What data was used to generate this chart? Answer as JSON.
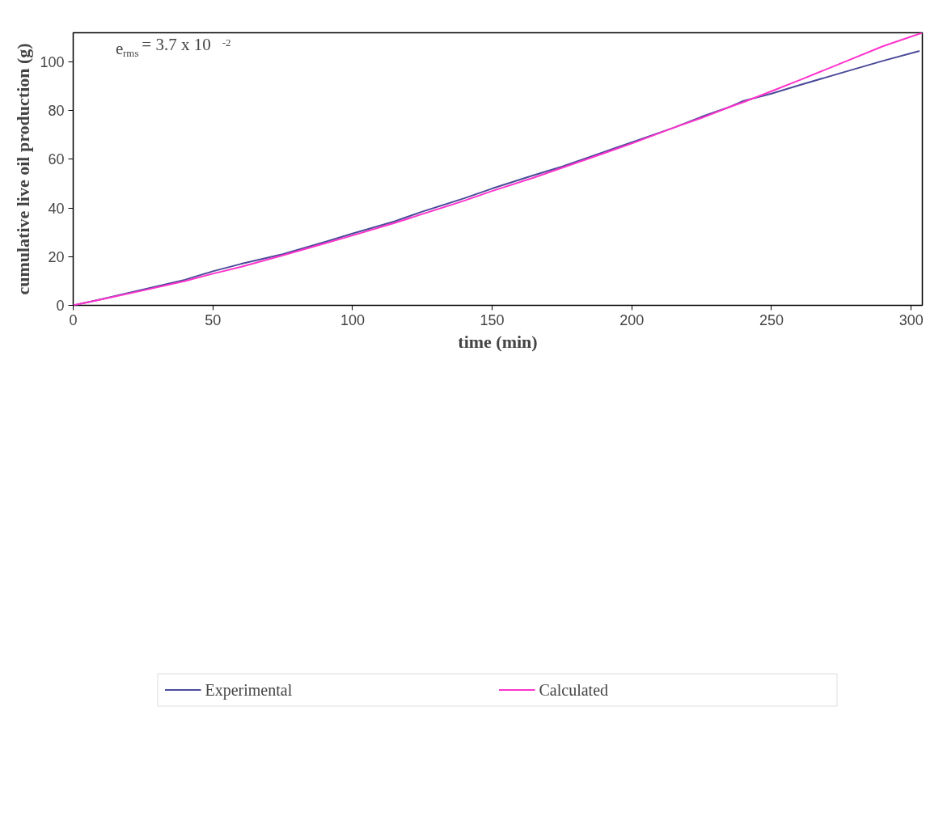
{
  "chart_data": {
    "type": "line",
    "xlabel": "time (min)",
    "ylabel": "cumulative live oil production (g)",
    "xlim": [
      0,
      304
    ],
    "ylim": [
      0,
      112
    ],
    "xticks": [
      0,
      50,
      100,
      150,
      200,
      250,
      300
    ],
    "yticks": [
      0,
      20,
      40,
      60,
      80,
      100
    ],
    "grid": false,
    "legend": "bottom",
    "marker": "none",
    "line_style": "solid",
    "annotations": [
      "e$_{rms}$ = 3.7 x 10$^{-2}$"
    ],
    "series": [
      {
        "name": "Experimental",
        "color": "#4a4a9a",
        "x": [
          0,
          10,
          25,
          40,
          50,
          60,
          75,
          90,
          100,
          115,
          125,
          140,
          150,
          165,
          175,
          190,
          200,
          215,
          225,
          235,
          240,
          250,
          260,
          275,
          290,
          303
        ],
        "values": [
          0,
          2.5,
          6.5,
          10.5,
          14,
          17,
          21,
          26,
          29.5,
          34.5,
          38.5,
          44,
          48,
          53.5,
          57,
          63,
          67,
          73,
          77.5,
          81.5,
          84,
          87,
          90.5,
          95.5,
          100.5,
          104.5
        ]
      },
      {
        "name": "Calculated",
        "color": "#ff33cc",
        "x": [
          0,
          10,
          25,
          40,
          50,
          60,
          75,
          90,
          100,
          115,
          125,
          140,
          150,
          165,
          175,
          190,
          200,
          215,
          225,
          235,
          240,
          250,
          260,
          275,
          290,
          304
        ],
        "values": [
          0,
          2.4,
          6.1,
          10,
          13,
          15.8,
          20.5,
          25.4,
          28.7,
          33.8,
          37.5,
          43,
          47,
          52.5,
          56.5,
          62.5,
          66.5,
          73,
          77,
          81.5,
          83.5,
          88,
          92.5,
          99.5,
          106.5,
          112
        ]
      }
    ]
  }
}
